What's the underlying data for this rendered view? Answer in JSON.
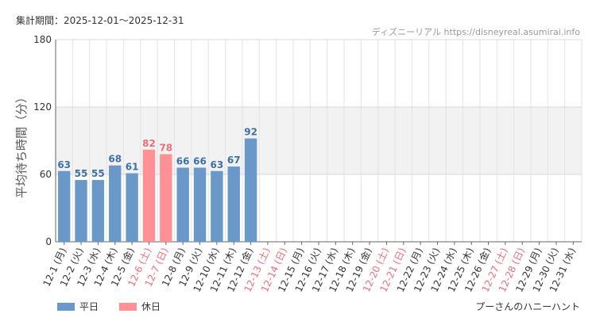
{
  "header": {
    "period_label": "集計期間：2025-12-01～2025-12-31",
    "source": "ディズニーリアル https://disneyreal.asumirai.info"
  },
  "footer": {
    "attraction": "プーさんのハニーハント"
  },
  "chart_data": {
    "type": "bar",
    "ylabel": "平均待ち時間（分）",
    "ylim": [
      0,
      180
    ],
    "yticks": [
      0,
      60,
      120,
      180
    ],
    "highlight_band": [
      60,
      120
    ],
    "grid": true,
    "legend_position": "bottom-left",
    "legend": [
      {
        "name": "平日",
        "color": "#6a98c9"
      },
      {
        "name": "休日",
        "color": "#ff9096"
      }
    ],
    "label_colors": {
      "weekday": "#333333",
      "holiday": "#e8707a"
    },
    "value_label_colors": {
      "weekday": "#3f6fa7",
      "holiday": "#ec6f78"
    },
    "categories": [
      "12-1 (月)",
      "12-2 (火)",
      "12-3 (水)",
      "12-4 (木)",
      "12-5 (金)",
      "12-6 (土)",
      "12-7 (日)",
      "12-8 (月)",
      "12-9 (火)",
      "12-10 (水)",
      "12-11 (木)",
      "12-12 (金)",
      "12-13 (土)",
      "12-14 (日)",
      "12-15 (月)",
      "12-16 (火)",
      "12-17 (水)",
      "12-18 (木)",
      "12-19 (金)",
      "12-20 (土)",
      "12-21 (日)",
      "12-22 (月)",
      "12-23 (火)",
      "12-24 (水)",
      "12-25 (木)",
      "12-26 (金)",
      "12-27 (土)",
      "12-28 (日)",
      "12-29 (月)",
      "12-30 (火)",
      "12-31 (水)"
    ],
    "values": [
      63,
      55,
      55,
      68,
      61,
      82,
      78,
      66,
      66,
      63,
      67,
      92,
      null,
      null,
      null,
      null,
      null,
      null,
      null,
      null,
      null,
      null,
      null,
      null,
      null,
      null,
      null,
      null,
      null,
      null,
      null
    ],
    "day_types": [
      "weekday",
      "weekday",
      "weekday",
      "weekday",
      "weekday",
      "holiday",
      "holiday",
      "weekday",
      "weekday",
      "weekday",
      "weekday",
      "weekday",
      "holiday",
      "holiday",
      "weekday",
      "weekday",
      "weekday",
      "weekday",
      "weekday",
      "holiday",
      "holiday",
      "weekday",
      "weekday",
      "weekday",
      "weekday",
      "weekday",
      "holiday",
      "holiday",
      "weekday",
      "weekday",
      "weekday"
    ]
  }
}
